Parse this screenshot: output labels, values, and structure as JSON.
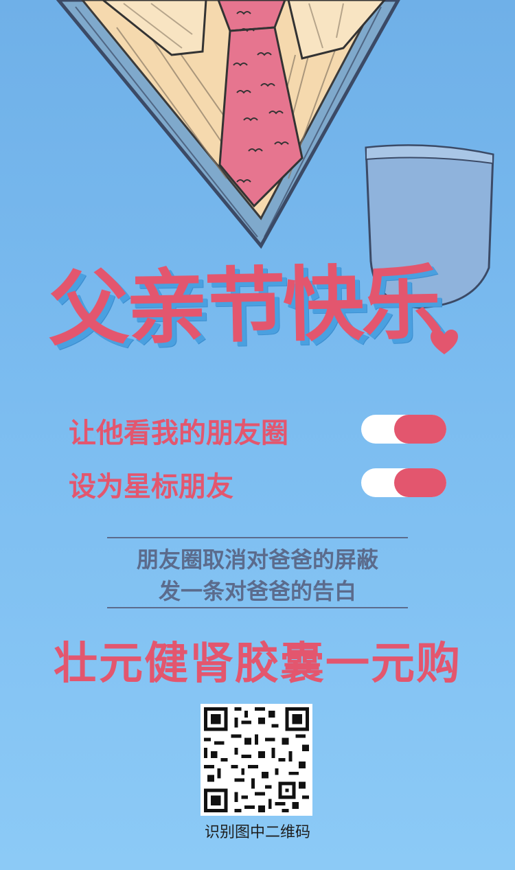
{
  "title": "父亲节快乐",
  "toggles": [
    {
      "label": "让他看我的朋友圈",
      "on": true
    },
    {
      "label": "设为星标朋友",
      "on": true
    }
  ],
  "message": {
    "line1": "朋友圈取消对爸爸的屏蔽",
    "line2": "发一条对爸爸的告白"
  },
  "promo": "壮元健肾胶囊一元购",
  "qr_caption": "识别图中二维码",
  "colors": {
    "background": "#7bbcf0",
    "accent": "#e3566e",
    "message_text": "#5b6b8c",
    "shadow": "#4aa0e0"
  }
}
